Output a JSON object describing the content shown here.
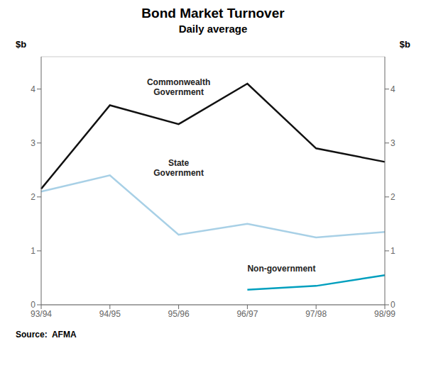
{
  "chart_data": {
    "type": "line",
    "title": "Bond Market Turnover",
    "subtitle": "Daily average",
    "ylabel": "$b",
    "y2label": "$b",
    "source": "Source:  AFMA",
    "categories": [
      "93/94",
      "94/95",
      "95/96",
      "96/97",
      "97/98",
      "98/99"
    ],
    "series": [
      {
        "color": "#111111",
        "values": [
          2.15,
          3.7,
          3.35,
          4.1,
          2.9,
          2.65
        ]
      },
      {
        "color": "#a8d0e6",
        "values": [
          2.1,
          2.4,
          1.3,
          1.5,
          1.25,
          1.35
        ]
      },
      {
        "color": "#009fbe",
        "values": [
          null,
          null,
          null,
          0.28,
          0.35,
          0.55
        ]
      }
    ],
    "annotations": [
      "Commonwealth\nGovernment",
      "State\nGovernment",
      "Non-government"
    ],
    "ylim": [
      0,
      4.6
    ],
    "yticks": [
      0,
      1,
      2,
      3,
      4
    ],
    "y2lim": [
      0,
      4.6
    ],
    "y2ticks": [
      0,
      1,
      2,
      3,
      4
    ],
    "grid": true
  }
}
